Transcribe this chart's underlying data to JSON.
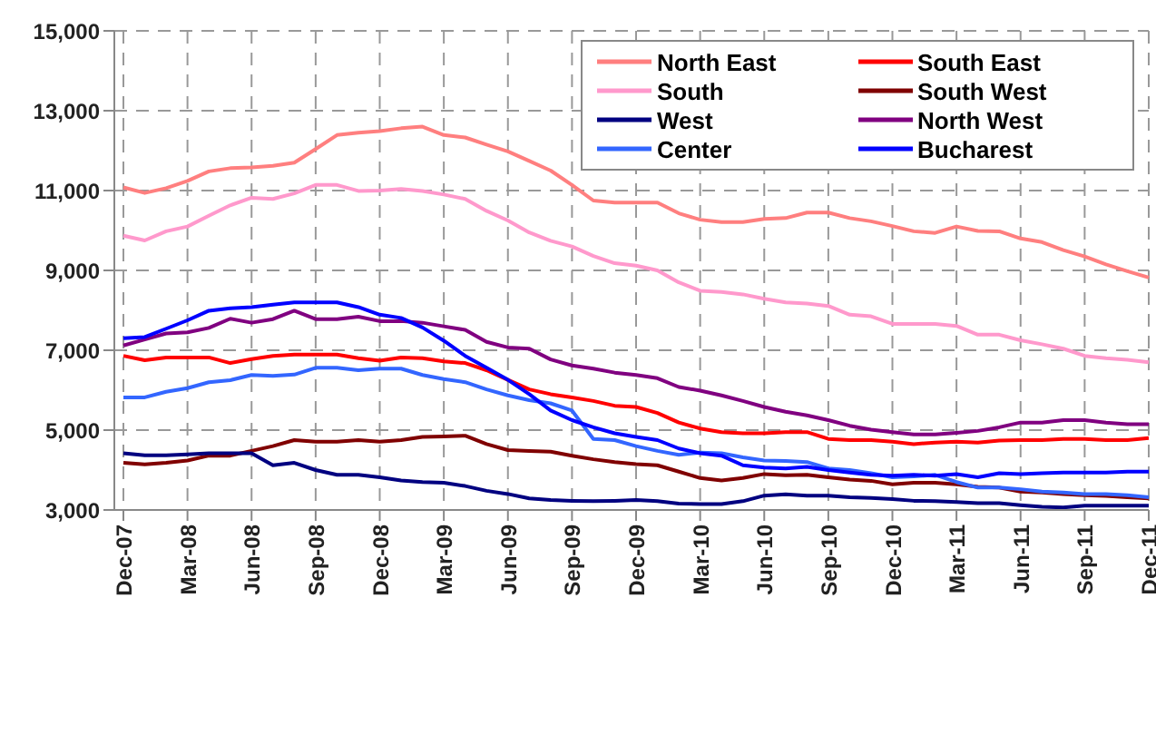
{
  "chart_data": {
    "type": "line",
    "categories": [
      "Dec-07",
      null,
      null,
      "Mar-08",
      null,
      null,
      "Jun-08",
      null,
      null,
      "Sep-08",
      null,
      null,
      "Dec-08",
      null,
      null,
      "Mar-09",
      null,
      null,
      "Jun-09",
      null,
      null,
      "Sep-09",
      null,
      null,
      "Dec-09",
      null,
      null,
      "Mar-10",
      null,
      null,
      "Jun-10",
      null,
      null,
      "Sep-10",
      null,
      null,
      "Dec-10",
      null,
      null,
      "Mar-11",
      null,
      null,
      "Jun-11",
      null,
      null,
      "Sep-11",
      null,
      null,
      "Dec-11"
    ],
    "ylim": [
      3000,
      15000
    ],
    "yticks": [
      {
        "value": 3000,
        "label": "3,000"
      },
      {
        "value": 5000,
        "label": "5,000"
      },
      {
        "value": 7000,
        "label": "7,000"
      },
      {
        "value": 9000,
        "label": "9,000"
      },
      {
        "value": 11000,
        "label": "11,000"
      },
      {
        "value": 13000,
        "label": "13,000"
      },
      {
        "value": 15000,
        "label": "15,000"
      }
    ],
    "grid": true,
    "legend": "top right",
    "series": [
      {
        "name": "North East",
        "color": "#ff7f7f",
        "values": [
          11080,
          10940,
          11060,
          11240,
          11480,
          11560,
          11580,
          11620,
          11700,
          12040,
          12390,
          12450,
          12490,
          12560,
          12600,
          12390,
          12330,
          12150,
          11980,
          11740,
          11500,
          11140,
          10750,
          10700,
          10700,
          10700,
          10430,
          10270,
          10210,
          10210,
          10290,
          10310,
          10450,
          10450,
          10310,
          10230,
          10110,
          9980,
          9940,
          10100,
          9990,
          9980,
          9800,
          9710,
          9510,
          9350,
          9150,
          8980,
          8820
        ]
      },
      {
        "name": "South East",
        "color": "#ff0000",
        "values": [
          6860,
          6750,
          6820,
          6820,
          6820,
          6680,
          6780,
          6860,
          6890,
          6890,
          6890,
          6800,
          6740,
          6820,
          6800,
          6720,
          6680,
          6500,
          6260,
          6020,
          5900,
          5820,
          5730,
          5610,
          5580,
          5430,
          5190,
          5040,
          4950,
          4920,
          4920,
          4950,
          4950,
          4780,
          4750,
          4750,
          4710,
          4650,
          4690,
          4710,
          4690,
          4740,
          4750,
          4750,
          4780,
          4780,
          4750,
          4750,
          4800
        ]
      },
      {
        "name": "South",
        "color": "#ff99cc",
        "values": [
          9870,
          9750,
          9980,
          10100,
          10370,
          10630,
          10820,
          10790,
          10930,
          11140,
          11140,
          10990,
          11000,
          11040,
          10990,
          10900,
          10790,
          10490,
          10250,
          9950,
          9740,
          9600,
          9360,
          9180,
          9120,
          9000,
          8700,
          8490,
          8460,
          8400,
          8290,
          8200,
          8170,
          8110,
          7890,
          7850,
          7660,
          7660,
          7660,
          7610,
          7390,
          7390,
          7250,
          7150,
          7040,
          6860,
          6800,
          6760,
          6700
        ]
      },
      {
        "name": "South West",
        "color": "#800000",
        "values": [
          4180,
          4140,
          4180,
          4240,
          4360,
          4360,
          4480,
          4600,
          4750,
          4710,
          4710,
          4750,
          4710,
          4750,
          4830,
          4840,
          4860,
          4650,
          4500,
          4480,
          4460,
          4360,
          4270,
          4200,
          4150,
          4120,
          3960,
          3800,
          3740,
          3800,
          3900,
          3870,
          3880,
          3820,
          3760,
          3730,
          3640,
          3680,
          3680,
          3640,
          3580,
          3560,
          3460,
          3440,
          3400,
          3370,
          3350,
          3320,
          3290
        ]
      },
      {
        "name": "West",
        "color": "#000080",
        "values": [
          4420,
          4370,
          4370,
          4390,
          4420,
          4420,
          4420,
          4120,
          4180,
          4000,
          3880,
          3880,
          3820,
          3740,
          3700,
          3680,
          3600,
          3480,
          3400,
          3290,
          3250,
          3230,
          3220,
          3230,
          3250,
          3220,
          3160,
          3150,
          3150,
          3220,
          3360,
          3390,
          3360,
          3360,
          3320,
          3300,
          3270,
          3230,
          3220,
          3200,
          3170,
          3170,
          3120,
          3080,
          3060,
          3110,
          3110,
          3110,
          3110
        ]
      },
      {
        "name": "North West",
        "color": "#800080",
        "values": [
          7120,
          7270,
          7420,
          7450,
          7560,
          7790,
          7690,
          7780,
          7990,
          7780,
          7780,
          7840,
          7730,
          7730,
          7690,
          7600,
          7510,
          7210,
          7070,
          7040,
          6770,
          6620,
          6540,
          6440,
          6380,
          6300,
          6080,
          5990,
          5870,
          5730,
          5580,
          5460,
          5370,
          5250,
          5110,
          5010,
          4950,
          4890,
          4890,
          4930,
          4980,
          5070,
          5190,
          5190,
          5250,
          5250,
          5190,
          5150,
          5150
        ]
      },
      {
        "name": "Center",
        "color": "#3366ff",
        "values": [
          5820,
          5820,
          5960,
          6050,
          6200,
          6250,
          6380,
          6360,
          6390,
          6560,
          6560,
          6500,
          6540,
          6540,
          6380,
          6280,
          6200,
          6020,
          5870,
          5750,
          5670,
          5490,
          4780,
          4750,
          4600,
          4480,
          4380,
          4440,
          4420,
          4320,
          4240,
          4230,
          4200,
          4040,
          4000,
          3920,
          3820,
          3840,
          3880,
          3700,
          3560,
          3560,
          3520,
          3460,
          3440,
          3400,
          3400,
          3370,
          3320
        ]
      },
      {
        "name": "Bucharest",
        "color": "#0000ff",
        "values": [
          7300,
          7330,
          7540,
          7750,
          7990,
          8050,
          8080,
          8140,
          8200,
          8200,
          8200,
          8080,
          7890,
          7810,
          7570,
          7240,
          6860,
          6560,
          6260,
          5900,
          5490,
          5250,
          5070,
          4920,
          4830,
          4750,
          4540,
          4420,
          4360,
          4120,
          4060,
          4040,
          4080,
          4000,
          3940,
          3880,
          3860,
          3880,
          3860,
          3900,
          3820,
          3920,
          3900,
          3920,
          3940,
          3940,
          3940,
          3960,
          3960
        ]
      }
    ]
  }
}
